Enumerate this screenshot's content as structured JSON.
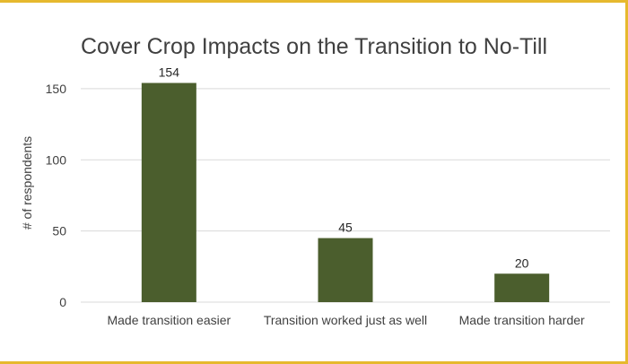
{
  "chart_data": {
    "type": "bar",
    "title": "Cover Crop Impacts on the Transition to No-Till",
    "xlabel": "",
    "ylabel": "# of respondents",
    "categories": [
      "Made transition easier",
      "Transition worked just as well",
      "Made transition harder"
    ],
    "values": [
      154,
      45,
      20
    ],
    "data_labels": [
      "154",
      "45",
      "20"
    ],
    "ylim": [
      0,
      160
    ],
    "yticks": [
      0,
      50,
      100,
      150
    ],
    "ytick_labels": [
      "0",
      "50",
      "100",
      "150"
    ],
    "grid": true,
    "legend": "none",
    "colors": {
      "bar": "#4b5e2d",
      "grid": "#d9d9d9",
      "frame": "#e6b92e",
      "text": "#404040"
    }
  }
}
